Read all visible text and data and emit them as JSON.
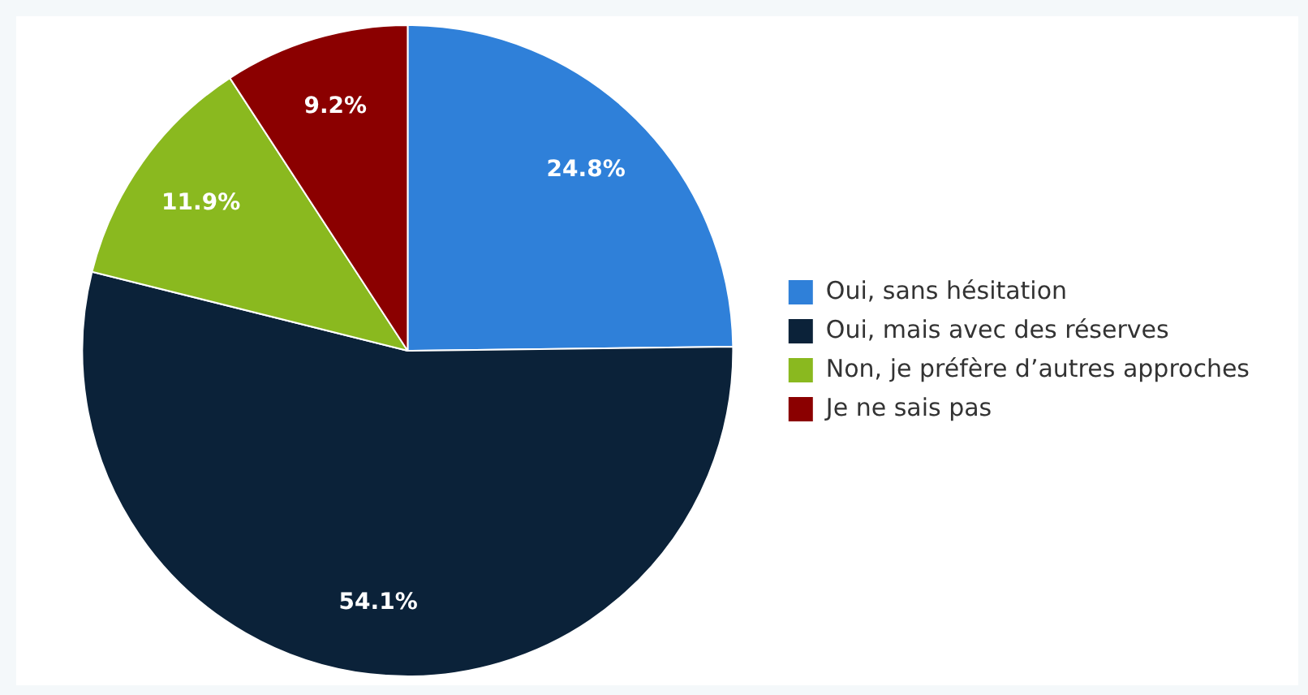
{
  "chart_data": {
    "type": "pie",
    "categories": [
      "Oui, sans hésitation",
      "Oui, mais avec des réserves",
      "Non, je préfère d’autres approches",
      "Je ne sais pas"
    ],
    "values": [
      24.8,
      54.1,
      11.9,
      9.2
    ],
    "colors": [
      "#2f80d9",
      "#0b2239",
      "#8ab91f",
      "#8b0000"
    ],
    "value_labels": [
      "24.8%",
      "54.1%",
      "11.9%",
      "9.2%"
    ],
    "legend": "right"
  }
}
